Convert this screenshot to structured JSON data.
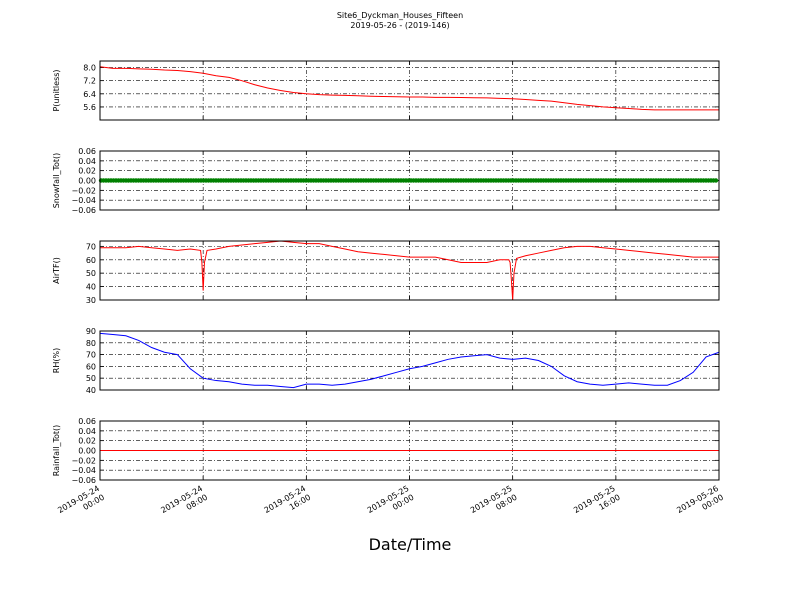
{
  "title": "Site6_Dyckman_Houses_Fifteen",
  "subtitle": "2019-05-26 - (2019-146)",
  "xlabel": "Date/Time",
  "chart_data": [
    {
      "type": "line",
      "ylabel": "P(unitless)",
      "color": "#ff0000",
      "ylim": [
        4.8,
        8.4
      ],
      "yticks": [
        "8.0",
        "7.2",
        "6.4",
        "5.6"
      ],
      "ytick_values": [
        8.0,
        7.2,
        6.4,
        5.6
      ],
      "x": [
        0,
        1,
        2,
        3,
        4,
        5,
        6,
        7,
        8,
        9,
        10,
        11,
        12,
        13,
        14,
        15,
        16,
        17,
        18,
        19,
        20,
        21,
        22,
        23,
        24,
        25,
        26,
        27,
        28,
        29,
        30,
        31,
        32,
        33,
        34,
        35,
        36,
        37,
        38,
        39,
        40,
        41,
        42,
        43,
        44,
        45,
        46,
        47,
        48
      ],
      "values": [
        8.05,
        7.95,
        7.95,
        7.92,
        7.9,
        7.85,
        7.82,
        7.75,
        7.65,
        7.5,
        7.4,
        7.2,
        6.95,
        6.75,
        6.6,
        6.48,
        6.4,
        6.35,
        6.32,
        6.3,
        6.28,
        6.25,
        6.23,
        6.22,
        6.2,
        6.2,
        6.18,
        6.18,
        6.17,
        6.16,
        6.15,
        6.12,
        6.1,
        6.05,
        6.0,
        5.95,
        5.85,
        5.75,
        5.68,
        5.6,
        5.55,
        5.5,
        5.45,
        5.42,
        5.42,
        5.42,
        5.42,
        5.42,
        5.42
      ]
    },
    {
      "type": "line",
      "ylabel": "Snowfall_Tot()",
      "color": "#008000",
      "marker": "dot",
      "ylim": [
        -0.06,
        0.06
      ],
      "yticks": [
        "0.06",
        "0.04",
        "0.02",
        "0.00",
        "−0.02",
        "−0.04",
        "−0.06"
      ],
      "ytick_values": [
        0.06,
        0.04,
        0.02,
        0.0,
        -0.02,
        -0.04,
        -0.06
      ],
      "x": [
        0,
        48
      ],
      "values": [
        0,
        0
      ]
    },
    {
      "type": "line",
      "ylabel": "AirTF()",
      "color": "#ff0000",
      "ylim": [
        30,
        74
      ],
      "yticks": [
        "70",
        "60",
        "50",
        "40",
        "30"
      ],
      "ytick_values": [
        70,
        60,
        50,
        40,
        30
      ],
      "x": [
        0,
        1,
        2,
        3,
        4,
        5,
        6,
        7,
        7.8,
        7.9,
        8.0,
        8.1,
        8.3,
        9,
        10,
        11,
        12,
        13,
        14,
        15,
        16,
        17,
        18,
        19,
        20,
        21,
        22,
        23,
        24,
        25,
        26,
        27,
        28,
        29,
        30,
        31,
        31.7,
        31.8,
        31.9,
        32.0,
        32.1,
        32.3,
        33,
        34,
        35,
        36,
        37,
        38,
        39,
        40,
        41,
        42,
        43,
        44,
        45,
        46,
        47,
        48
      ],
      "values": [
        69,
        69,
        69,
        70,
        69,
        68,
        67,
        68,
        67,
        58,
        37,
        58,
        67,
        68,
        70,
        71,
        72,
        73,
        74,
        73,
        72,
        72,
        70,
        68,
        66,
        65,
        64,
        63,
        62,
        62,
        62,
        60,
        58,
        58,
        58,
        60,
        60,
        58,
        45,
        30,
        50,
        61,
        63,
        65,
        67,
        69,
        70,
        70,
        69,
        68,
        67,
        66,
        65,
        64,
        63,
        62,
        62,
        62
      ]
    },
    {
      "type": "line",
      "ylabel": "RH(%)",
      "color": "#0000ff",
      "ylim": [
        40,
        90
      ],
      "yticks": [
        "90",
        "80",
        "70",
        "60",
        "50",
        "40"
      ],
      "ytick_values": [
        90,
        80,
        70,
        60,
        50,
        40
      ],
      "x": [
        0,
        1,
        2,
        3,
        4,
        5,
        6,
        7,
        8,
        9,
        10,
        11,
        12,
        13,
        14,
        15,
        16,
        17,
        18,
        19,
        20,
        21,
        22,
        23,
        24,
        25,
        26,
        27,
        28,
        29,
        30,
        31,
        32,
        33,
        34,
        35,
        36,
        37,
        38,
        39,
        40,
        41,
        42,
        43,
        44,
        45,
        46,
        47,
        48
      ],
      "values": [
        88,
        87,
        86,
        82,
        76,
        72,
        70,
        58,
        50,
        48,
        47,
        45,
        44,
        44,
        43,
        42,
        45,
        45,
        44,
        45,
        47,
        49,
        52,
        55,
        58,
        60,
        63,
        66,
        68,
        69,
        70,
        67,
        66,
        67,
        65,
        60,
        52,
        47,
        45,
        44,
        45,
        46,
        45,
        44,
        44,
        48,
        55,
        68,
        72
      ]
    },
    {
      "type": "line",
      "ylabel": "Rainfall_Tot()",
      "color": "#ff0000",
      "ylim": [
        -0.06,
        0.06
      ],
      "yticks": [
        "0.06",
        "0.04",
        "0.02",
        "0.00",
        "−0.02",
        "−0.04",
        "−0.06"
      ],
      "ytick_values": [
        0.06,
        0.04,
        0.02,
        0.0,
        -0.02,
        -0.04,
        -0.06
      ],
      "x": [
        0,
        48
      ],
      "values": [
        0,
        0
      ]
    }
  ],
  "xaxis": {
    "range_hours": [
      0,
      48
    ],
    "tick_hours": [
      0,
      8,
      16,
      24,
      32,
      40,
      48
    ],
    "tick_labels": [
      [
        "2019-05-24",
        "00:00"
      ],
      [
        "2019-05-24",
        "08:00"
      ],
      [
        "2019-05-24",
        "16:00"
      ],
      [
        "2019-05-25",
        "00:00"
      ],
      [
        "2019-05-25",
        "08:00"
      ],
      [
        "2019-05-25",
        "16:00"
      ],
      [
        "2019-05-26",
        "00:00"
      ]
    ]
  }
}
